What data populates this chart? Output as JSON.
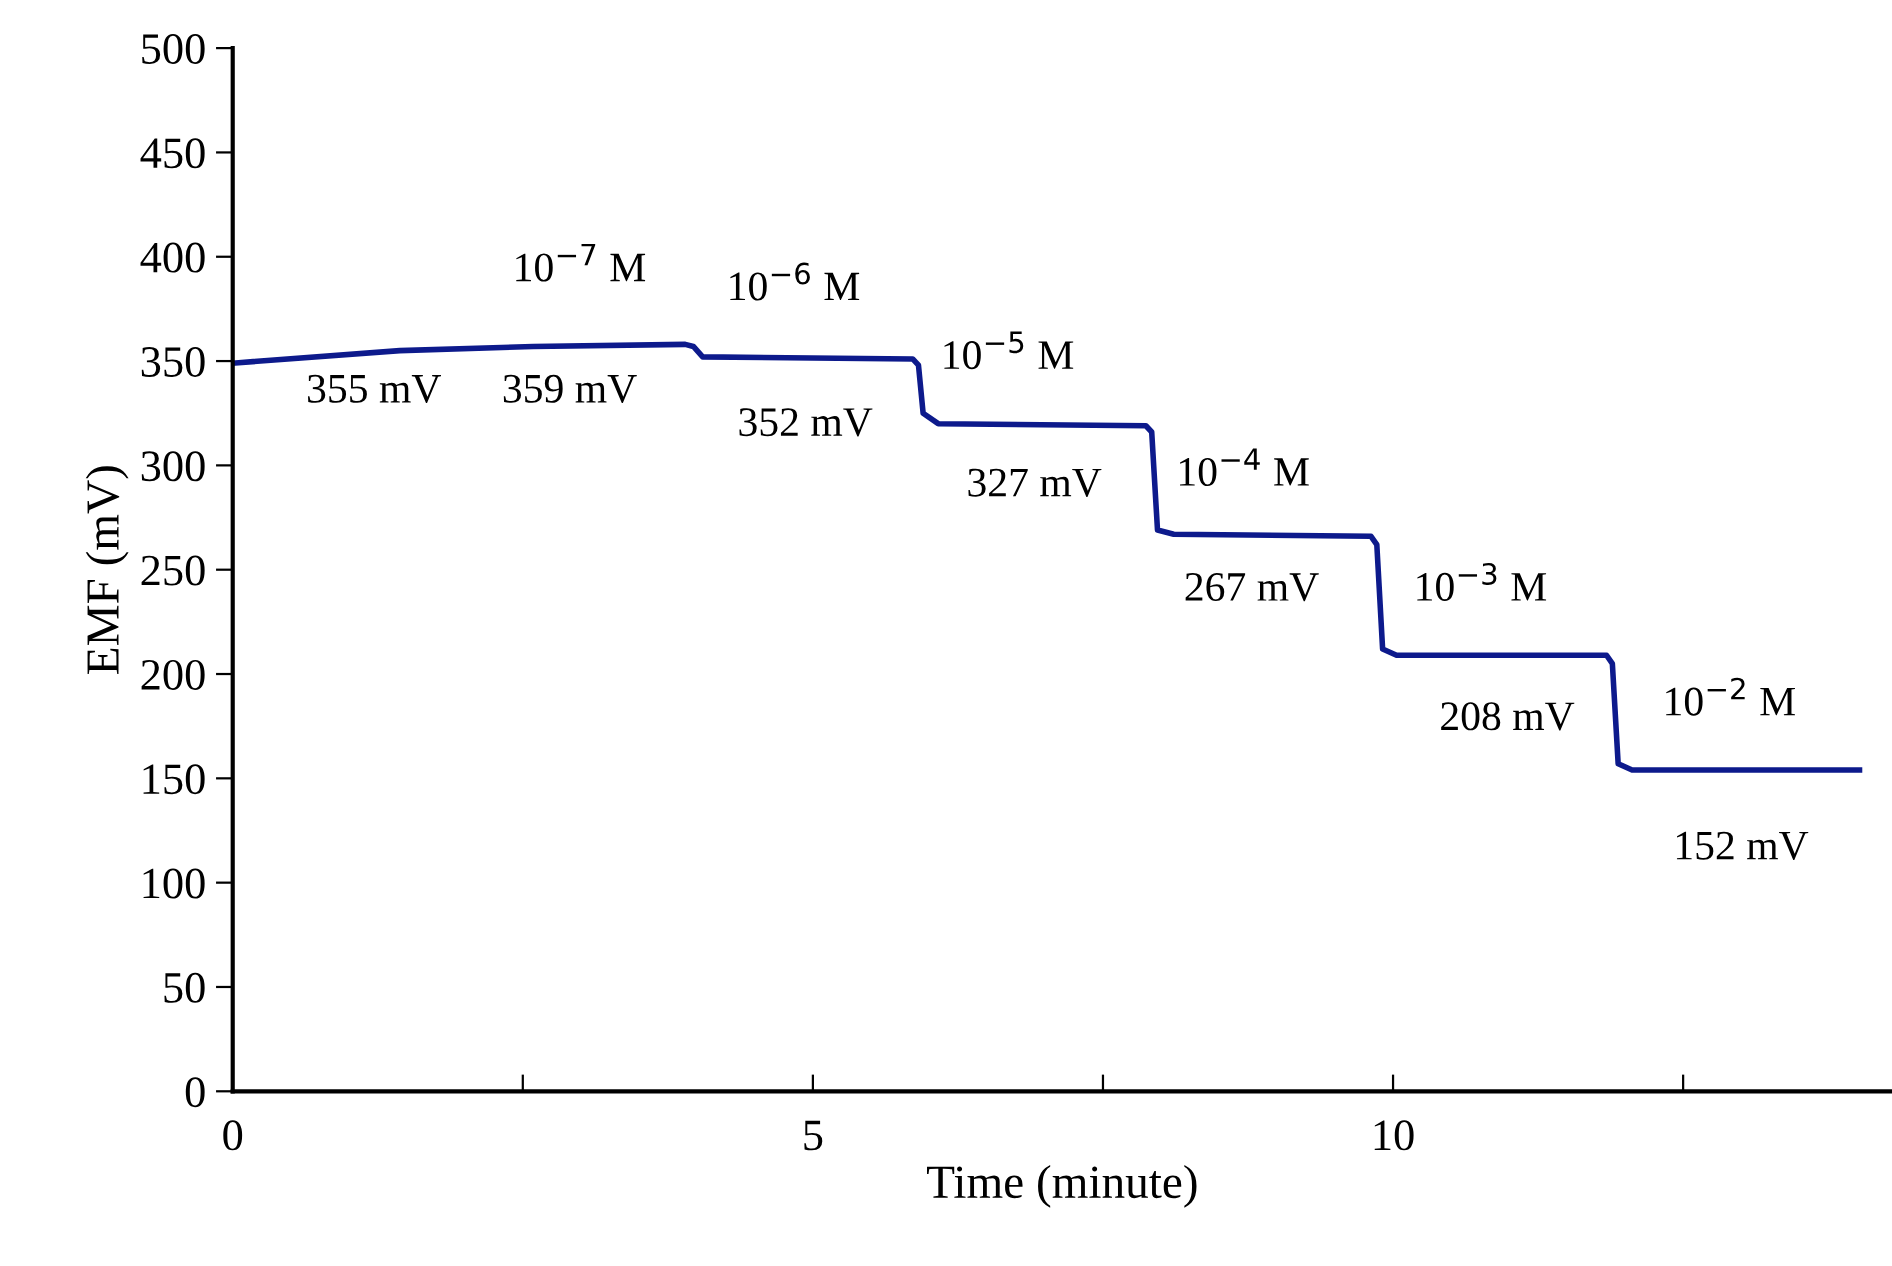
{
  "chart_data": {
    "type": "line",
    "xlabel": "Time (minute)",
    "ylabel": "EMF (mV)",
    "x": [
      0,
      1.44,
      2.59,
      3.9,
      3.97,
      4.05,
      5.86,
      5.91,
      5.95,
      6.08,
      7.87,
      7.92,
      7.97,
      8.11,
      9.81,
      9.86,
      9.91,
      10.03,
      11.84,
      11.89,
      11.94,
      12.06,
      14.02
    ],
    "series": [
      {
        "color": "#0d1a8c",
        "values": [
          349,
          355,
          357,
          358,
          357,
          352,
          351,
          348,
          325,
          320,
          319,
          316,
          269,
          267,
          266,
          262,
          212,
          209,
          209,
          205,
          157,
          154,
          154
        ]
      }
    ],
    "xlim": [
      0,
      14.3
    ],
    "xticks": [
      0,
      {
        "value": 2.5,
        "label": null
      },
      5,
      {
        "value": 7.5,
        "label": null
      },
      10,
      {
        "value": 12.5,
        "label": null
      }
    ],
    "ylim": [
      0,
      500
    ],
    "yticks": [
      0,
      50,
      100,
      150,
      200,
      250,
      300,
      350,
      400,
      450,
      500
    ],
    "grid": false,
    "legend": false,
    "marker": "none",
    "line_style": "solid",
    "annotations": [
      "10$^{−7}$ M",
      "10$^{−6}$ M",
      "10$^{−5}$ M",
      "10$^{−4}$ M",
      "10$^{−3}$ M",
      "10$^{−2}$ M",
      "355 mV",
      "359 mV",
      "352 mV",
      "327 mV",
      "267 mV",
      "208 mV",
      "152 mV"
    ]
  }
}
